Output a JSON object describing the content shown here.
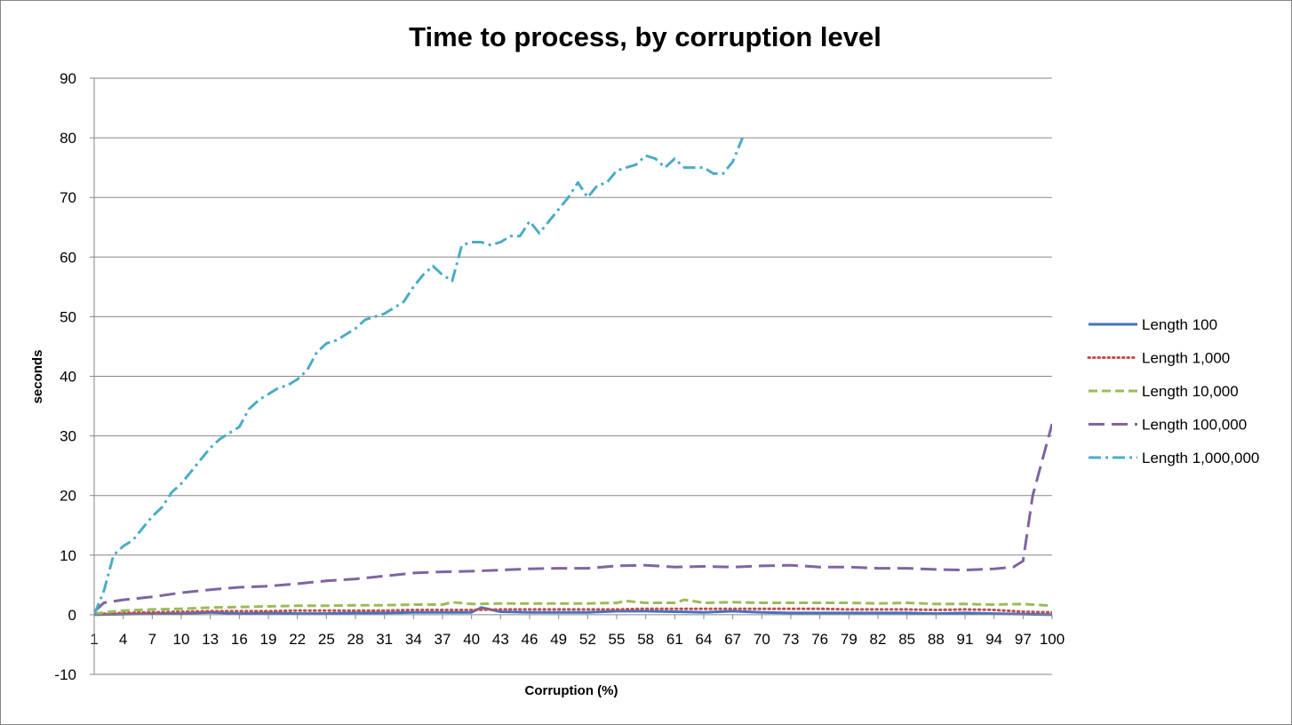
{
  "chart_data": {
    "type": "line",
    "title": "Time to process, by corruption level",
    "xlabel": "Corruption  (%)",
    "ylabel": "seconds",
    "ylim": [
      -10,
      90
    ],
    "yticks": [
      "-10",
      "0",
      "10",
      "20",
      "30",
      "40",
      "50",
      "60",
      "70",
      "80",
      "90"
    ],
    "xlim": [
      1,
      100
    ],
    "xticks": [
      "1",
      "4",
      "7",
      "10",
      "13",
      "16",
      "19",
      "22",
      "25",
      "28",
      "31",
      "34",
      "37",
      "40",
      "43",
      "46",
      "49",
      "52",
      "55",
      "58",
      "61",
      "64",
      "67",
      "70",
      "73",
      "76",
      "79",
      "82",
      "85",
      "88",
      "91",
      "94",
      "97",
      "100"
    ],
    "grid": true,
    "legend_position": "right",
    "series": [
      {
        "name": "Length 100",
        "color": "#4472C4",
        "dash": "solid",
        "points": [
          [
            1,
            0
          ],
          [
            4,
            0.1
          ],
          [
            7,
            0.2
          ],
          [
            10,
            0.2
          ],
          [
            13,
            0.4
          ],
          [
            16,
            0.2
          ],
          [
            19,
            0.3
          ],
          [
            22,
            0.2
          ],
          [
            25,
            0.2
          ],
          [
            28,
            0.3
          ],
          [
            31,
            0.3
          ],
          [
            34,
            0.4
          ],
          [
            37,
            0.4
          ],
          [
            40,
            0.4
          ],
          [
            41,
            1.2
          ],
          [
            43,
            0.5
          ],
          [
            46,
            0.4
          ],
          [
            49,
            0.4
          ],
          [
            52,
            0.4
          ],
          [
            55,
            0.6
          ],
          [
            58,
            0.6
          ],
          [
            61,
            0.5
          ],
          [
            64,
            0.4
          ],
          [
            67,
            0.6
          ],
          [
            70,
            0.4
          ],
          [
            73,
            0.3
          ],
          [
            76,
            0.3
          ],
          [
            79,
            0.3
          ],
          [
            82,
            0.3
          ],
          [
            85,
            0.3
          ],
          [
            88,
            0.2
          ],
          [
            91,
            0.3
          ],
          [
            94,
            0.2
          ],
          [
            97,
            0.1
          ],
          [
            100,
            0
          ]
        ]
      },
      {
        "name": "Length 1,000",
        "color": "#C0504D",
        "dash": "dotted",
        "points": [
          [
            1,
            0.1
          ],
          [
            4,
            0.3
          ],
          [
            7,
            0.4
          ],
          [
            10,
            0.5
          ],
          [
            13,
            0.6
          ],
          [
            16,
            0.6
          ],
          [
            19,
            0.6
          ],
          [
            22,
            0.7
          ],
          [
            25,
            0.7
          ],
          [
            28,
            0.7
          ],
          [
            31,
            0.7
          ],
          [
            34,
            0.8
          ],
          [
            37,
            0.8
          ],
          [
            40,
            0.8
          ],
          [
            43,
            0.9
          ],
          [
            46,
            0.9
          ],
          [
            49,
            0.9
          ],
          [
            52,
            0.9
          ],
          [
            55,
            0.9
          ],
          [
            58,
            1.0
          ],
          [
            61,
            1.0
          ],
          [
            64,
            1.0
          ],
          [
            67,
            1.0
          ],
          [
            70,
            1.0
          ],
          [
            73,
            1.0
          ],
          [
            76,
            1.0
          ],
          [
            79,
            0.9
          ],
          [
            82,
            0.9
          ],
          [
            85,
            0.9
          ],
          [
            88,
            0.8
          ],
          [
            91,
            0.9
          ],
          [
            94,
            0.8
          ],
          [
            97,
            0.5
          ],
          [
            100,
            0.4
          ]
        ]
      },
      {
        "name": "Length 10,000",
        "color": "#9BBB59",
        "dash": "dashed",
        "points": [
          [
            1,
            0.2
          ],
          [
            4,
            0.7
          ],
          [
            7,
            0.9
          ],
          [
            10,
            1.0
          ],
          [
            13,
            1.2
          ],
          [
            16,
            1.3
          ],
          [
            19,
            1.4
          ],
          [
            22,
            1.5
          ],
          [
            25,
            1.5
          ],
          [
            28,
            1.6
          ],
          [
            31,
            1.6
          ],
          [
            34,
            1.7
          ],
          [
            37,
            1.7
          ],
          [
            38,
            2.1
          ],
          [
            40,
            1.8
          ],
          [
            43,
            1.9
          ],
          [
            46,
            1.9
          ],
          [
            49,
            1.9
          ],
          [
            52,
            1.9
          ],
          [
            55,
            2.0
          ],
          [
            56,
            2.3
          ],
          [
            58,
            2.0
          ],
          [
            61,
            2.0
          ],
          [
            62,
            2.5
          ],
          [
            64,
            2.0
          ],
          [
            67,
            2.1
          ],
          [
            70,
            2.0
          ],
          [
            73,
            2.0
          ],
          [
            76,
            2.0
          ],
          [
            79,
            2.0
          ],
          [
            82,
            1.9
          ],
          [
            85,
            2.0
          ],
          [
            88,
            1.8
          ],
          [
            91,
            1.8
          ],
          [
            94,
            1.7
          ],
          [
            97,
            1.8
          ],
          [
            100,
            1.5
          ]
        ]
      },
      {
        "name": "Length 100,000",
        "color": "#8064A2",
        "dash": "long-dash",
        "points": [
          [
            1,
            0.5
          ],
          [
            2,
            2.0
          ],
          [
            4,
            2.5
          ],
          [
            7,
            3.0
          ],
          [
            10,
            3.7
          ],
          [
            13,
            4.2
          ],
          [
            16,
            4.6
          ],
          [
            19,
            4.8
          ],
          [
            22,
            5.2
          ],
          [
            25,
            5.7
          ],
          [
            28,
            6.0
          ],
          [
            31,
            6.5
          ],
          [
            34,
            7.0
          ],
          [
            37,
            7.2
          ],
          [
            40,
            7.3
          ],
          [
            43,
            7.5
          ],
          [
            46,
            7.7
          ],
          [
            49,
            7.8
          ],
          [
            52,
            7.8
          ],
          [
            55,
            8.2
          ],
          [
            58,
            8.3
          ],
          [
            61,
            8.0
          ],
          [
            64,
            8.1
          ],
          [
            67,
            8.0
          ],
          [
            70,
            8.2
          ],
          [
            73,
            8.3
          ],
          [
            76,
            8.0
          ],
          [
            79,
            8.0
          ],
          [
            82,
            7.8
          ],
          [
            85,
            7.8
          ],
          [
            88,
            7.6
          ],
          [
            91,
            7.5
          ],
          [
            94,
            7.7
          ],
          [
            96,
            8.0
          ],
          [
            97,
            9.0
          ],
          [
            98,
            20
          ],
          [
            100,
            32
          ]
        ]
      },
      {
        "name": "Length 1,000,000",
        "color": "#4BACC6",
        "dash": "dash-dot",
        "points": [
          [
            1,
            0
          ],
          [
            2,
            4
          ],
          [
            3,
            10
          ],
          [
            4,
            11.5
          ],
          [
            5,
            12.5
          ],
          [
            6,
            14.5
          ],
          [
            7,
            16.5
          ],
          [
            8,
            18
          ],
          [
            9,
            20.5
          ],
          [
            10,
            22
          ],
          [
            11,
            24
          ],
          [
            12,
            26
          ],
          [
            13,
            28
          ],
          [
            14,
            29.5
          ],
          [
            15,
            30.5
          ],
          [
            16,
            31.5
          ],
          [
            17,
            34.5
          ],
          [
            18,
            36
          ],
          [
            19,
            37
          ],
          [
            20,
            38
          ],
          [
            21,
            38.5
          ],
          [
            22,
            39.5
          ],
          [
            23,
            41
          ],
          [
            24,
            44
          ],
          [
            25,
            45.5
          ],
          [
            26,
            46
          ],
          [
            27,
            47
          ],
          [
            28,
            48
          ],
          [
            29,
            49.5
          ],
          [
            30,
            50
          ],
          [
            31,
            50.5
          ],
          [
            32,
            51.5
          ],
          [
            33,
            52.5
          ],
          [
            34,
            55
          ],
          [
            35,
            57
          ],
          [
            36,
            58.5
          ],
          [
            37,
            57
          ],
          [
            38,
            56
          ],
          [
            39,
            62
          ],
          [
            40,
            62.5
          ],
          [
            41,
            62.5
          ],
          [
            42,
            62
          ],
          [
            43,
            62.5
          ],
          [
            44,
            63.5
          ],
          [
            45,
            63.5
          ],
          [
            46,
            66
          ],
          [
            47,
            64
          ],
          [
            48,
            66
          ],
          [
            49,
            68
          ],
          [
            50,
            70
          ],
          [
            51,
            72.5
          ],
          [
            52,
            70
          ],
          [
            53,
            72
          ],
          [
            54,
            72.5
          ],
          [
            55,
            74.5
          ],
          [
            56,
            75
          ],
          [
            57,
            75.5
          ],
          [
            58,
            77
          ],
          [
            59,
            76.5
          ],
          [
            60,
            75
          ],
          [
            61,
            76.5
          ],
          [
            62,
            75
          ],
          [
            63,
            75
          ],
          [
            64,
            75
          ],
          [
            65,
            74
          ],
          [
            66,
            74
          ],
          [
            67,
            76
          ],
          [
            68,
            80
          ]
        ]
      }
    ]
  }
}
